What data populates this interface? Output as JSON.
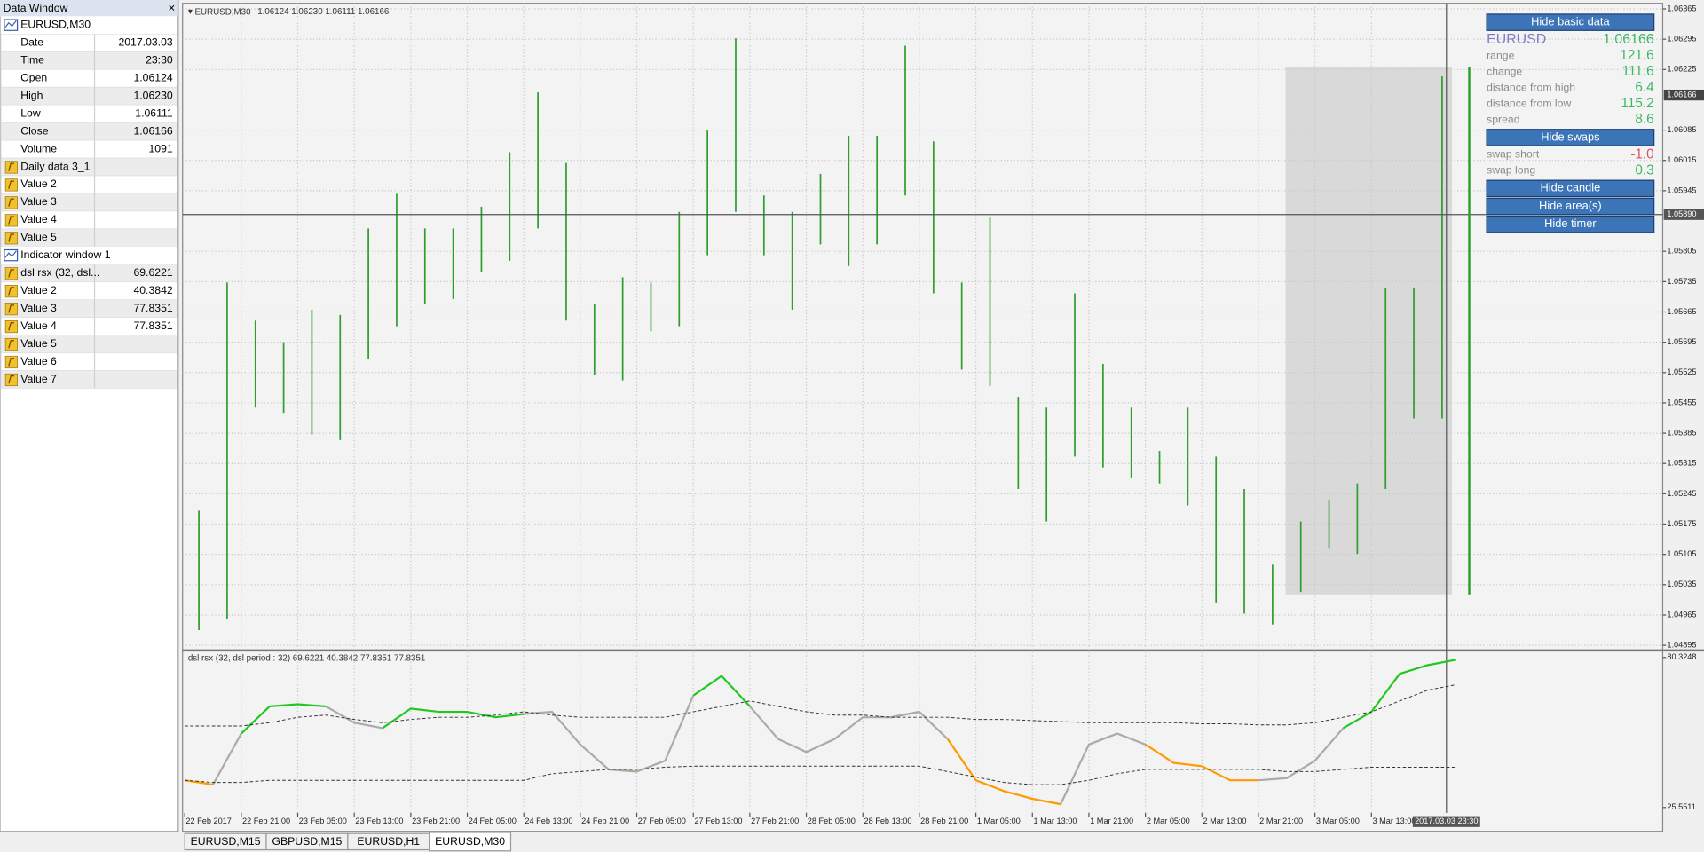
{
  "window_title": "Data Window",
  "close_button": "×",
  "data_window": {
    "sections": [
      {
        "title": "EURUSD,M30",
        "rows": [
          {
            "label": "Date",
            "value": "2017.03.03"
          },
          {
            "label": "Time",
            "value": "23:30"
          },
          {
            "label": "Open",
            "value": "1.06124"
          },
          {
            "label": "High",
            "value": "1.06230"
          },
          {
            "label": "Low",
            "value": "1.06111"
          },
          {
            "label": "Close",
            "value": "1.06166"
          },
          {
            "label": "Volume",
            "value": "1091"
          }
        ]
      },
      {
        "rows": [
          {
            "label": "Daily data 3_1"
          },
          {
            "label": "Value 2"
          },
          {
            "label": "Value 3"
          },
          {
            "label": "Value 4"
          },
          {
            "label": "Value 5"
          }
        ]
      },
      {
        "title": "Indicator window 1",
        "rows": [
          {
            "label": "dsl rsx (32, dsl...",
            "value": "69.6221"
          },
          {
            "label": "Value 2",
            "value": "40.3842"
          },
          {
            "label": "Value 3",
            "value": "77.8351"
          },
          {
            "label": "Value 4",
            "value": "77.8351"
          },
          {
            "label": "Value 5"
          },
          {
            "label": "Value 6"
          },
          {
            "label": "Value 7"
          }
        ]
      }
    ]
  },
  "price_chart": {
    "type": "bar",
    "symbol": "EURUSD,M30",
    "ohlc": "1.06124 1.06230 1.06111 1.06166",
    "color": "#2e9e2e",
    "grid": true,
    "high": [
      1.05206,
      1.05733,
      1.05645,
      1.05595,
      1.0567,
      1.05658,
      1.05858,
      1.05938,
      1.05858,
      1.05858,
      1.05908,
      1.06034,
      1.06172,
      1.06009,
      1.05683,
      1.05745,
      1.05733,
      1.05896,
      1.06084,
      1.06297,
      1.05934,
      1.05896,
      1.05984,
      1.06072,
      1.06072,
      1.0628,
      1.06059,
      1.05733,
      1.05883,
      1.05469,
      1.05444,
      1.05708,
      1.05545,
      1.05444,
      1.05344,
      1.05444,
      1.05331,
      1.05256,
      1.05081,
      1.05181,
      1.05231,
      1.05269,
      1.0572,
      1.0572,
      1.06209
    ],
    "low": [
      1.0493,
      1.04955,
      1.05444,
      1.05432,
      1.05382,
      1.05369,
      1.05557,
      1.05632,
      1.05683,
      1.05695,
      1.05758,
      1.05783,
      1.05858,
      1.05645,
      1.0552,
      1.05507,
      1.0562,
      1.05632,
      1.05796,
      1.05896,
      1.05796,
      1.0567,
      1.05821,
      1.05771,
      1.05821,
      1.05934,
      1.05708,
      1.05532,
      1.05494,
      1.05256,
      1.05181,
      1.05331,
      1.05306,
      1.05281,
      1.05269,
      1.05218,
      1.04994,
      1.04968,
      1.04943,
      1.05018,
      1.05118,
      1.05106,
      1.05256,
      1.05419,
      1.05419
    ],
    "ylim": [
      1.04887,
      1.06378
    ],
    "yticks": [
      1.06365,
      1.06295,
      1.06225,
      1.06085,
      1.06015,
      1.05945,
      1.05805,
      1.05735,
      1.05665,
      1.05595,
      1.05525,
      1.05455,
      1.05385,
      1.05315,
      1.05245,
      1.05175,
      1.05105,
      1.05035,
      1.04965,
      1.04895
    ],
    "current_price": 1.06166,
    "crosshair_price": {
      "value": 1.0589,
      "label": "1.05890"
    },
    "crosshair_time": "2017.03.03 23:30",
    "x_labels": [
      "22 Feb 2017",
      "22 Feb 21:00",
      "23 Feb 05:00",
      "23 Feb 13:00",
      "23 Feb 21:00",
      "24 Feb 05:00",
      "24 Feb 13:00",
      "24 Feb 21:00",
      "27 Feb 05:00",
      "27 Feb 13:00",
      "27 Feb 21:00",
      "28 Feb 05:00",
      "28 Feb 13:00",
      "28 Feb 21:00",
      "1 Mar 05:00",
      "1 Mar 13:00",
      "1 Mar 21:00",
      "2 Mar 05:00",
      "2 Mar 13:00",
      "2 Mar 21:00",
      "3 Mar 05:00",
      "3 Mar 13:00"
    ]
  },
  "indicator": {
    "type": "line",
    "label": "dsl rsx (32, dsl period : 32) 69.6221 40.3842 77.8351 77.8351",
    "ylim": [
      23.57,
      82.31
    ],
    "yticks": [
      80.3248,
      25.5511
    ],
    "series": [
      {
        "color": "#22c822",
        "values": [
          null,
          null,
          52.54,
          62.46,
          63.26,
          62.46,
          null,
          54.52,
          61.67,
          60.48,
          60.48,
          58.49,
          59.68,
          null,
          null,
          null,
          null,
          null,
          66.43,
          73.58,
          62.46,
          null,
          null,
          null,
          null,
          58.49,
          60.48,
          null,
          null,
          null,
          null,
          null,
          null,
          null,
          null,
          null,
          null,
          null,
          null,
          null,
          null,
          54.52,
          60.48,
          74.37,
          77.55,
          79.53
        ]
      },
      {
        "color": "#ff9a00",
        "values": [
          35.47,
          33.89,
          null,
          null,
          null,
          null,
          null,
          null,
          null,
          null,
          null,
          null,
          null,
          null,
          null,
          39.45,
          38.65,
          null,
          null,
          null,
          null,
          null,
          null,
          null,
          null,
          null,
          null,
          50.56,
          35.47,
          31.51,
          28.73,
          26.74,
          null,
          null,
          48.57,
          41.83,
          40.63,
          35.47,
          35.47,
          null,
          null,
          null,
          null,
          null,
          null,
          null
        ]
      },
      {
        "color": "#aaaaaa",
        "values": [
          null,
          33.89,
          52.54,
          null,
          null,
          62.46,
          56.51,
          54.52,
          null,
          null,
          null,
          null,
          59.68,
          60.48,
          48.57,
          39.45,
          38.65,
          42.62,
          66.43,
          null,
          62.46,
          50.56,
          45.79,
          50.56,
          58.49,
          58.49,
          60.48,
          50.56,
          null,
          null,
          null,
          26.74,
          48.57,
          52.54,
          48.57,
          null,
          null,
          null,
          35.47,
          36.27,
          42.62,
          54.52,
          null,
          null,
          null,
          null
        ]
      },
      {
        "color": "#333333",
        "dash": true,
        "values": [
          55.32,
          55.32,
          55.32,
          56.51,
          58.49,
          59.29,
          57.7,
          56.51,
          57.7,
          58.49,
          58.49,
          59.29,
          60.48,
          59.29,
          58.49,
          58.49,
          58.49,
          58.49,
          60.48,
          62.46,
          64.45,
          62.46,
          60.48,
          59.29,
          59.29,
          58.49,
          58.49,
          58.49,
          57.7,
          57.7,
          57.31,
          56.91,
          56.51,
          56.51,
          56.51,
          56.51,
          56.11,
          56.11,
          55.72,
          55.72,
          56.51,
          58.49,
          60.48,
          64.45,
          68.42,
          70.4
        ]
      },
      {
        "color": "#333333",
        "dash": true,
        "values": [
          35.47,
          34.68,
          34.68,
          35.47,
          35.47,
          35.47,
          35.47,
          35.47,
          35.47,
          35.47,
          35.47,
          35.47,
          35.47,
          37.86,
          38.65,
          39.45,
          39.45,
          40.24,
          40.63,
          40.63,
          40.63,
          40.63,
          40.63,
          40.63,
          40.63,
          40.63,
          40.63,
          38.65,
          36.67,
          34.68,
          33.89,
          33.89,
          35.47,
          37.86,
          39.45,
          39.45,
          39.45,
          39.45,
          39.45,
          38.65,
          38.65,
          39.45,
          40.24,
          40.24,
          40.24,
          40.24
        ]
      }
    ]
  },
  "overlay": {
    "buttons": [
      "Hide basic data",
      "Hide swaps",
      "Hide candle",
      "Hide area(s)",
      "Hide timer"
    ],
    "symbol": "EURUSD",
    "price": "1.06166",
    "stats": [
      {
        "label": "range",
        "value": "121.6"
      },
      {
        "label": "change",
        "value": "111.6"
      },
      {
        "label": "distance from high",
        "value": "6.4"
      },
      {
        "label": "distance from low",
        "value": "115.2"
      },
      {
        "label": "spread",
        "value": "8.6"
      }
    ],
    "swaps": [
      {
        "label": "swap short",
        "value": "-1.0"
      },
      {
        "label": "swap long",
        "value": "0.3"
      }
    ]
  },
  "tabs": [
    "EURUSD,M15",
    "GBPUSD,M15",
    "EURUSD,H1",
    "EURUSD,M30"
  ],
  "active_tab": 3
}
